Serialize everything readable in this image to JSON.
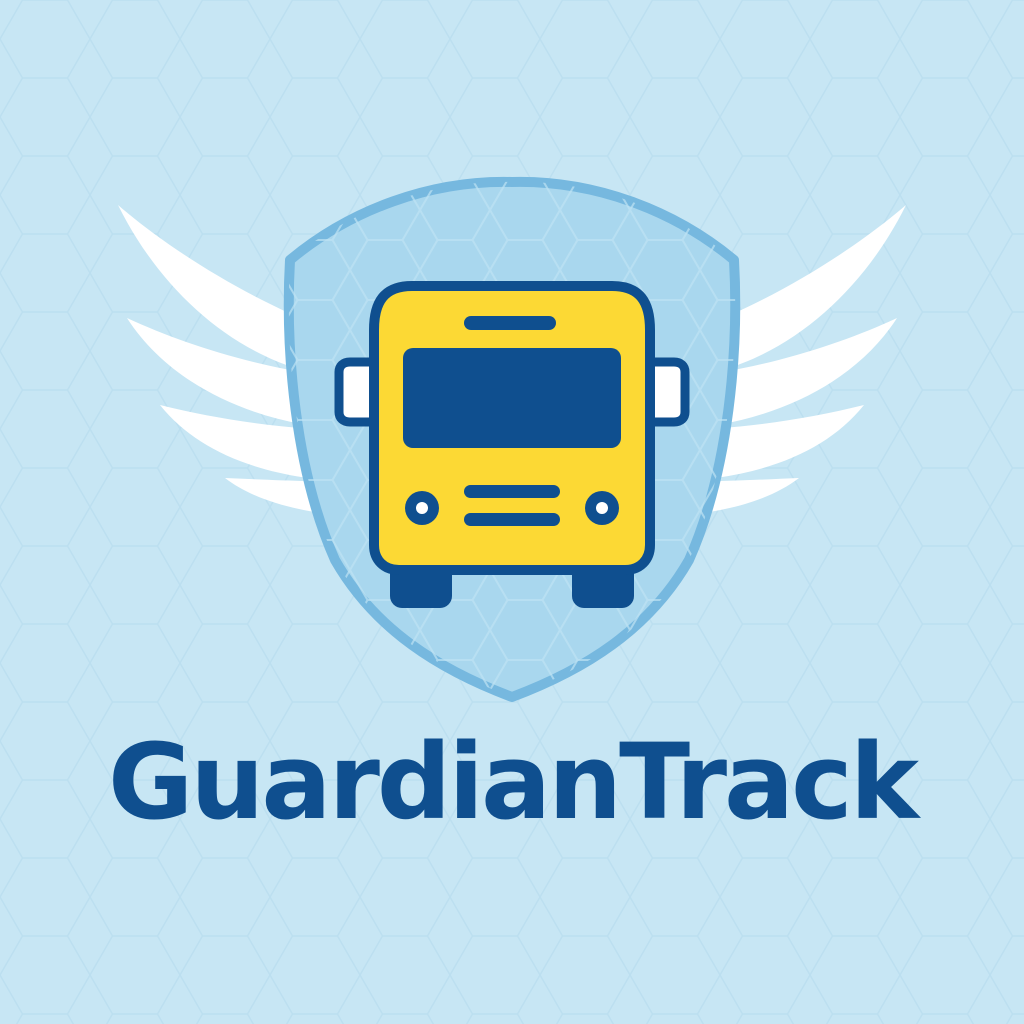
{
  "brand": {
    "name": "GuardianTrack"
  },
  "logo": {
    "icons": [
      "wings-icon",
      "shield-icon",
      "school-bus-icon"
    ]
  },
  "colors": {
    "background": "#c7e6f4",
    "pattern_line": "#b7dbee",
    "shield_fill": "#a9d7ee",
    "shield_border": "#76b8df",
    "wing": "#ffffff",
    "bus_body": "#fcd934",
    "bus_outline": "#0f4f8f",
    "text": "#0f4f8f"
  }
}
